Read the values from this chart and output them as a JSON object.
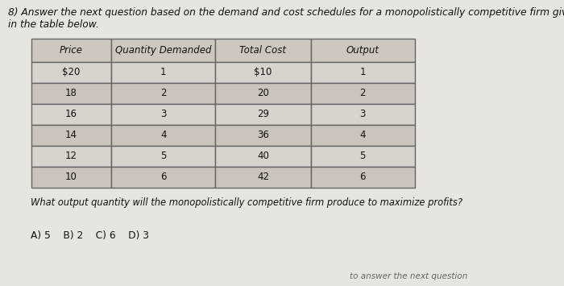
{
  "title_line1": "8) Answer the next question based on the demand and cost schedules for a monopolistically competitive firm given",
  "title_line2": "in the table below.",
  "headers": [
    "Price",
    "Quantity Demanded",
    "Total Cost",
    "Output"
  ],
  "rows": [
    [
      "$20",
      "1",
      "$10",
      "1"
    ],
    [
      "18",
      "2",
      "20",
      "2"
    ],
    [
      "16",
      "3",
      "29",
      "3"
    ],
    [
      "14",
      "4",
      "36",
      "4"
    ],
    [
      "12",
      "5",
      "40",
      "5"
    ],
    [
      "10",
      "6",
      "42",
      "6"
    ]
  ],
  "question": "What output quantity will the monopolistically competitive firm produce to maximize profits?",
  "choices": "A) 5    B) 2    C) 6    D) 3",
  "footer": "to answer the next question",
  "bg_color": "#e8e4df",
  "cell_color_light": "#d8d3cc",
  "cell_color_dark": "#cac4bc",
  "header_color": "#cdc7bf",
  "border_color": "#666666",
  "text_color": "#111111",
  "title_fontsize": 8.8,
  "body_fontsize": 8.5,
  "question_fontsize": 8.3,
  "choices_fontsize": 8.8
}
